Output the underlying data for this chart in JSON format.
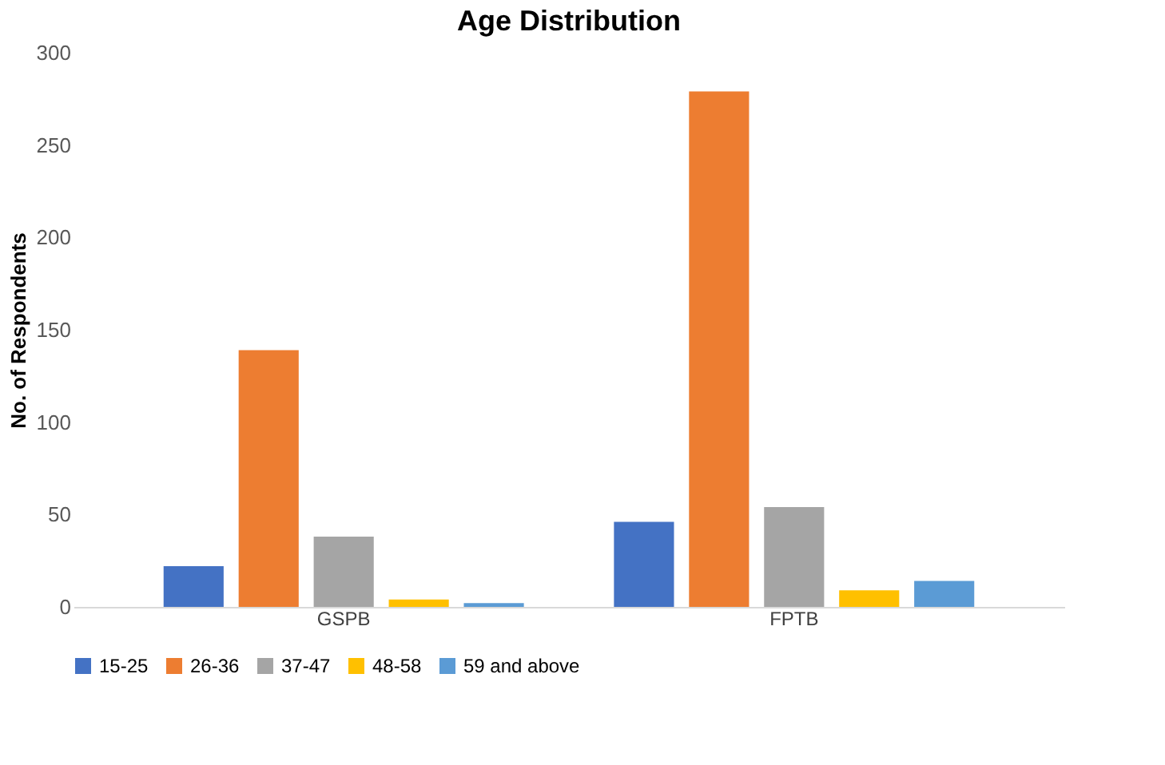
{
  "chart_data": {
    "type": "bar",
    "title": "Age Distribution",
    "ylabel": "No. of Respondents",
    "categories": [
      "GSPB",
      "FPTB"
    ],
    "series": [
      {
        "name": "15-25",
        "color": "#4472c4",
        "values": [
          22,
          46
        ]
      },
      {
        "name": "26-36",
        "color": "#ed7d31",
        "values": [
          139,
          279
        ]
      },
      {
        "name": "37-47",
        "color": "#a5a5a5",
        "values": [
          38,
          54
        ]
      },
      {
        "name": "48-58",
        "color": "#ffc000",
        "values": [
          4,
          9
        ]
      },
      {
        "name": "59 and above",
        "color": "#5b9bd5",
        "values": [
          2,
          14
        ]
      }
    ],
    "ylim": [
      0,
      300
    ],
    "yticks": [
      0,
      50,
      100,
      150,
      200,
      250,
      300
    ],
    "grid": false,
    "legend": "bottom"
  }
}
